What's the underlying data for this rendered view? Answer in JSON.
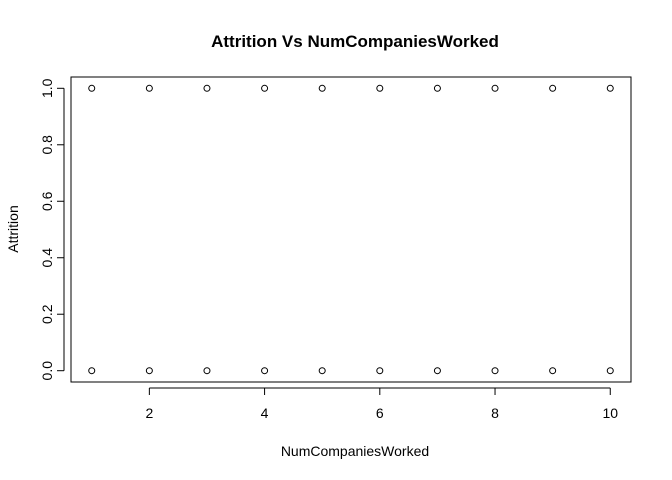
{
  "chart_data": {
    "type": "scatter",
    "title": "Attrition Vs NumCompaniesWorked",
    "xlabel": "NumCompaniesWorked",
    "ylabel": "Attrition",
    "xlim": [
      0.64,
      10.36
    ],
    "ylim": [
      -0.04,
      1.04
    ],
    "xticks": [
      2,
      4,
      6,
      8,
      10
    ],
    "xtick_labels": [
      "2",
      "4",
      "6",
      "8",
      "10"
    ],
    "yticks": [
      0.0,
      0.2,
      0.4,
      0.6,
      0.8,
      1.0
    ],
    "ytick_labels": [
      "0.0",
      "0.2",
      "0.4",
      "0.6",
      "0.8",
      "1.0"
    ],
    "grid": false,
    "marker": "open-circle",
    "series": [
      {
        "points": [
          [
            1,
            1
          ],
          [
            2,
            1
          ],
          [
            3,
            1
          ],
          [
            4,
            1
          ],
          [
            5,
            1
          ],
          [
            6,
            1
          ],
          [
            7,
            1
          ],
          [
            8,
            1
          ],
          [
            9,
            1
          ],
          [
            10,
            1
          ],
          [
            1,
            0
          ],
          [
            2,
            0
          ],
          [
            3,
            0
          ],
          [
            4,
            0
          ],
          [
            5,
            0
          ],
          [
            6,
            0
          ],
          [
            7,
            0
          ],
          [
            8,
            0
          ],
          [
            9,
            0
          ],
          [
            10,
            0
          ]
        ]
      }
    ]
  }
}
